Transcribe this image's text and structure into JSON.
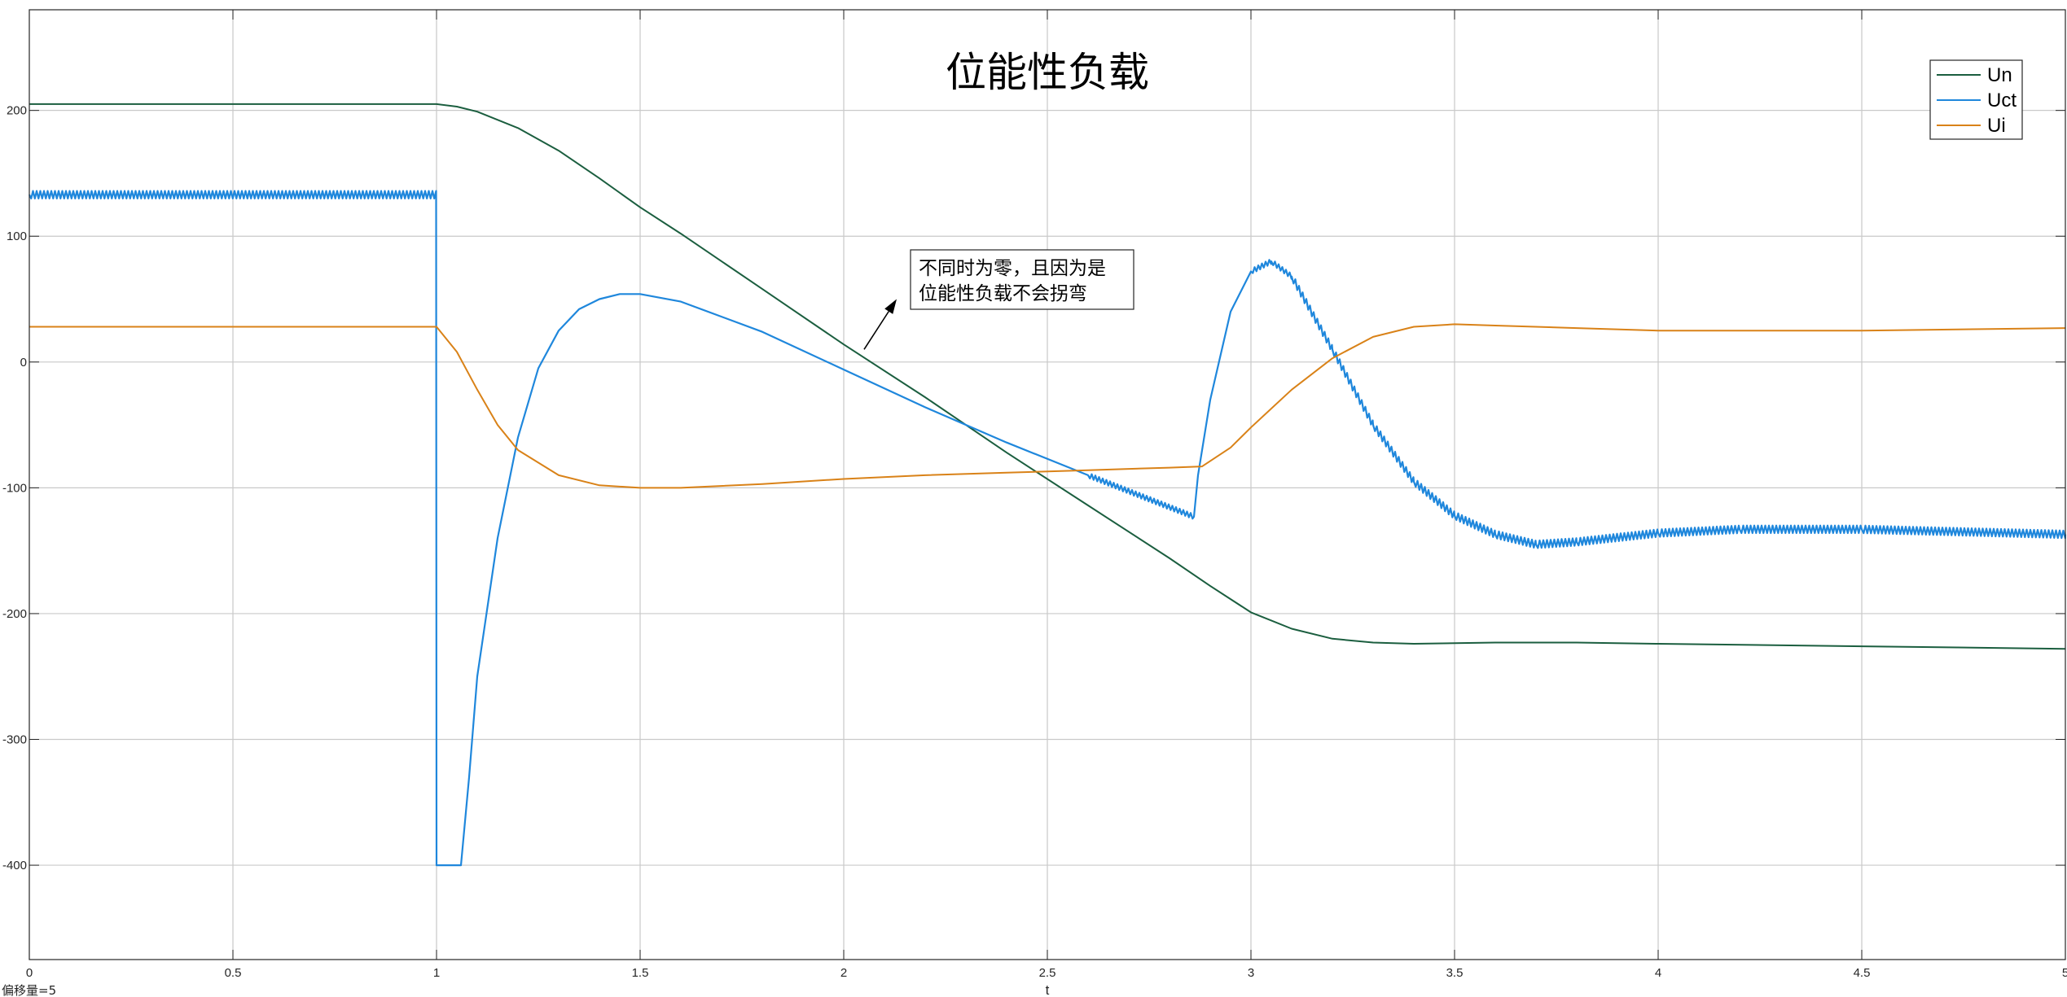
{
  "chart_data": {
    "type": "line",
    "title": "位能性负载",
    "xlabel": "t",
    "ylabel": "",
    "xlim": [
      0,
      5
    ],
    "ylim": [
      -475,
      280
    ],
    "xticks": [
      0,
      0.5,
      1,
      1.5,
      2,
      2.5,
      3,
      3.5,
      4,
      4.5,
      5
    ],
    "xtick_labels": [
      "0",
      "0.5",
      "1",
      "1.5",
      "2",
      "2.5",
      "3",
      "3.5",
      "4",
      "4.5",
      "5"
    ],
    "yticks": [
      200,
      100,
      0,
      -100,
      -200,
      -300,
      -400
    ],
    "ytick_labels": [
      "200",
      "100",
      "0",
      "-100",
      "-200",
      "-300",
      "-400"
    ],
    "grid": true,
    "legend_position": "top-right",
    "series": [
      {
        "name": "Un",
        "color": "#1b5e3f",
        "ripple": 0,
        "x": [
          0,
          1.0,
          1.05,
          1.1,
          1.2,
          1.3,
          1.4,
          1.5,
          1.6,
          1.8,
          2.0,
          2.2,
          2.4,
          2.6,
          2.8,
          2.9,
          3.0,
          3.1,
          3.2,
          3.3,
          3.4,
          3.6,
          3.8,
          4.0,
          4.5,
          5.0
        ],
        "y": [
          205,
          205,
          203,
          199,
          186,
          168,
          146,
          123,
          102,
          58,
          14,
          -28,
          -72,
          -114,
          -156,
          -178,
          -199,
          -212,
          -220,
          -223,
          -224,
          -223,
          -223,
          -224,
          -226,
          -228
        ]
      },
      {
        "name": "Uct",
        "color": "#1f87dc",
        "ripple_segments": [
          [
            0,
            1.0,
            3
          ],
          [
            2.45,
            2.86,
            2
          ],
          [
            2.98,
            3.1,
            2
          ],
          [
            3.1,
            5.0,
            3
          ]
        ],
        "x": [
          0,
          0.999,
          1.0,
          1.06,
          1.08,
          1.1,
          1.15,
          1.2,
          1.25,
          1.3,
          1.35,
          1.4,
          1.45,
          1.5,
          1.6,
          1.8,
          2.0,
          2.2,
          2.4,
          2.6,
          2.86,
          2.87,
          2.9,
          2.95,
          3.0,
          3.05,
          3.1,
          3.2,
          3.3,
          3.4,
          3.5,
          3.6,
          3.7,
          3.8,
          4.0,
          4.2,
          4.5,
          5.0
        ],
        "y": [
          133,
          133,
          -400,
          -400,
          -330,
          -250,
          -140,
          -60,
          -5,
          25,
          42,
          50,
          54,
          54,
          48,
          24,
          -6,
          -36,
          -64,
          -90,
          -123,
          -90,
          -30,
          40,
          72,
          80,
          68,
          10,
          -50,
          -95,
          -122,
          -137,
          -145,
          -143,
          -136,
          -133,
          -133,
          -137
        ]
      },
      {
        "name": "Ui",
        "color": "#d98218",
        "ripple": 0,
        "x": [
          0,
          1.0,
          1.05,
          1.1,
          1.15,
          1.2,
          1.3,
          1.4,
          1.5,
          1.6,
          1.8,
          2.0,
          2.2,
          2.4,
          2.6,
          2.8,
          2.88,
          2.95,
          3.0,
          3.1,
          3.2,
          3.3,
          3.4,
          3.5,
          3.6,
          3.8,
          4.0,
          4.2,
          4.5,
          5.0
        ],
        "y": [
          28,
          28,
          8,
          -22,
          -50,
          -70,
          -90,
          -98,
          -100,
          -100,
          -97,
          -93,
          -90,
          -88,
          -86,
          -84,
          -83,
          -68,
          -52,
          -22,
          3,
          20,
          28,
          30,
          29,
          27,
          25,
          25,
          25,
          27
        ]
      }
    ],
    "annotation": {
      "lines": [
        "不同时为零，且因为是",
        "位能性负载不会拐弯"
      ],
      "arrow_from": [
        2.05,
        10
      ],
      "arrow_to": [
        2.13,
        50
      ]
    },
    "footer": "偏移量=5"
  }
}
